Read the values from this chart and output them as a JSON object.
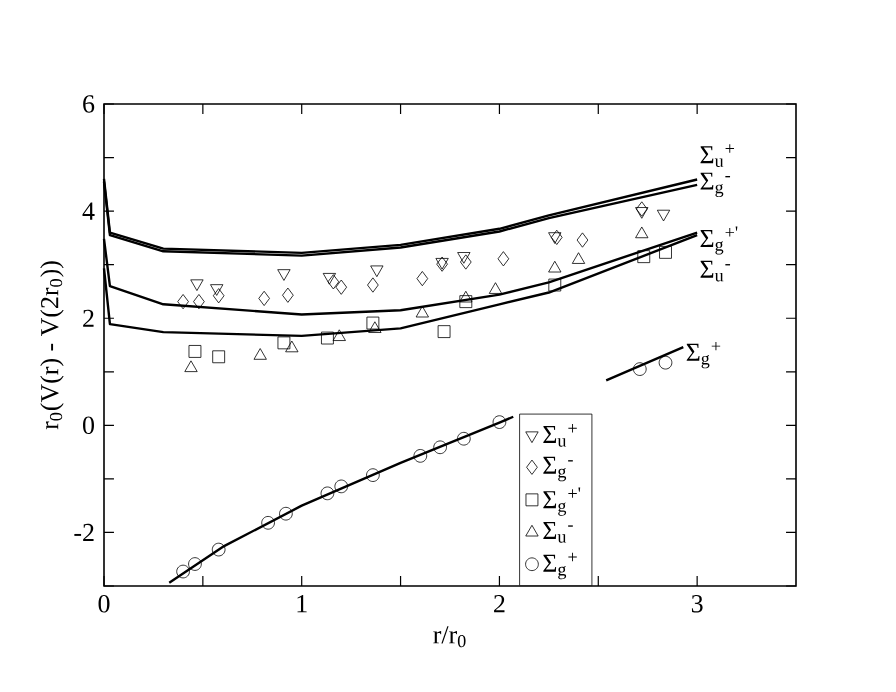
{
  "chart_data": {
    "type": "line",
    "xlabel": "r/r$_{0}$",
    "ylabel": "r$_{0}$(V(r) - V(2r$_{0}$))",
    "xlim": [
      0,
      3.5
    ],
    "ylim": [
      -3,
      6
    ],
    "xticks": [
      0,
      {
        "value": 0.5,
        "label": null
      },
      1,
      {
        "value": 1.5,
        "label": null
      },
      2,
      {
        "value": 2.5,
        "label": null
      },
      3
    ],
    "yticks": [
      {
        "value": -3,
        "label": null
      },
      -2,
      {
        "value": -1,
        "label": null
      },
      0,
      {
        "value": 1,
        "label": null
      },
      2,
      {
        "value": 3,
        "label": null
      },
      4,
      {
        "value": 5,
        "label": null
      },
      6
    ],
    "grid": false,
    "legend": "bottom right",
    "series": [
      {
        "name": "Σ$_{u}$$^{+}$",
        "type": "line",
        "color": "#000000",
        "marker": "none",
        "x": [
          0,
          0.03,
          0.3,
          1,
          1.5,
          2,
          2.25,
          3.0
        ],
        "values": [
          4.6,
          3.6,
          3.3,
          3.22,
          3.37,
          3.67,
          3.92,
          4.59
        ]
      },
      {
        "name": "Σ$_{g}$$^{-}$",
        "type": "line",
        "color": "#000000",
        "marker": "none",
        "x": [
          0,
          0.03,
          0.3,
          1,
          1.5,
          2,
          2.25,
          3.0
        ],
        "values": [
          4.55,
          3.55,
          3.25,
          3.17,
          3.32,
          3.62,
          3.87,
          4.49
        ]
      },
      {
        "name": "Σ$_{g}$$^{+'}$",
        "type": "line",
        "color": "#000000",
        "marker": "none",
        "x": [
          0,
          0.03,
          0.3,
          1,
          1.5,
          2,
          2.25,
          3.0
        ],
        "values": [
          3.48,
          2.6,
          2.26,
          2.07,
          2.15,
          2.44,
          2.67,
          3.6
        ]
      },
      {
        "name": "Σ$_{u}$$^{-}$",
        "type": "line",
        "color": "#000000",
        "marker": "none",
        "x": [
          0,
          0.03,
          0.3,
          1,
          1.5,
          2,
          2.25,
          3.0
        ],
        "values": [
          2.93,
          1.89,
          1.74,
          1.67,
          1.81,
          2.26,
          2.48,
          3.55
        ]
      },
      {
        "name": "Σ$_{g}$$^{+}$",
        "type": "line",
        "color": "#000000",
        "marker": "none",
        "x": [
          0.33,
          0.6,
          1.0,
          1.5,
          2.0,
          2.07,
          2.3,
          2.54,
          2.93
        ],
        "values": [
          -2.94,
          -2.27,
          -1.5,
          -0.7,
          0.05,
          0.16,
          null,
          0.84,
          1.46
        ]
      },
      {
        "name": "Σ$_{u}$$^{+}$",
        "type": "scatter",
        "color": "#000000",
        "marker": "triangle down",
        "x": [
          0.47,
          0.57,
          0.91,
          1.14,
          1.38,
          1.71,
          1.82,
          2.28,
          2.72,
          2.83
        ],
        "values": [
          2.65,
          2.56,
          2.84,
          2.77,
          2.91,
          3.05,
          3.16,
          3.53,
          4.0,
          3.95
        ]
      },
      {
        "name": "Σ$_{g}$$^{-}$",
        "type": "scatter",
        "color": "#000000",
        "marker": "diamond",
        "x": [
          0.4,
          0.48,
          0.58,
          0.81,
          0.93,
          1.16,
          1.2,
          1.36,
          1.61,
          1.71,
          1.83,
          2.02,
          2.29,
          2.42,
          2.72
        ],
        "values": [
          2.31,
          2.31,
          2.42,
          2.37,
          2.43,
          2.68,
          2.58,
          2.62,
          2.74,
          3.01,
          3.05,
          3.11,
          3.51,
          3.46,
          4.04
        ]
      },
      {
        "name": "Σ$_{g}$$^{+'}$",
        "type": "scatter",
        "color": "#000000",
        "marker": "square",
        "x": [
          0.46,
          0.58,
          0.91,
          1.13,
          1.36,
          1.72,
          1.83,
          2.28,
          2.73,
          2.84
        ],
        "values": [
          1.38,
          1.28,
          1.54,
          1.63,
          1.91,
          1.75,
          2.31,
          2.62,
          3.15,
          3.23
        ]
      },
      {
        "name": "Σ$_{u}$$^{-}$",
        "type": "scatter",
        "color": "#000000",
        "marker": "triangle",
        "x": [
          0.44,
          0.79,
          0.95,
          1.19,
          1.37,
          1.61,
          1.83,
          1.98,
          2.28,
          2.4,
          2.72
        ],
        "values": [
          1.07,
          1.3,
          1.44,
          1.65,
          1.8,
          2.09,
          2.37,
          2.53,
          2.93,
          3.09,
          3.57
        ]
      },
      {
        "name": "Σ$_{g}$$^{+}$",
        "type": "scatter",
        "color": "#000000",
        "marker": "circle",
        "x": [
          0.4,
          0.46,
          0.58,
          0.83,
          0.92,
          1.13,
          1.2,
          1.36,
          1.6,
          1.7,
          1.82,
          2.0,
          2.71,
          2.84
        ],
        "values": [
          -2.73,
          -2.59,
          -2.32,
          -1.82,
          -1.65,
          -1.27,
          -1.14,
          -0.93,
          -0.57,
          -0.41,
          -0.25,
          0.06,
          1.05,
          1.17
        ]
      }
    ]
  }
}
